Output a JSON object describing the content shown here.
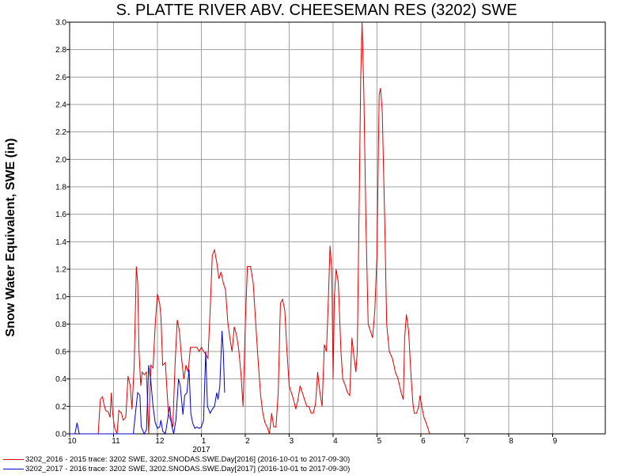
{
  "chart_data": {
    "type": "line",
    "title": "S. PLATTE RIVER ABV. CHEESEMAN RES (3202) SWE",
    "ylabel": "Snow Water Equivalent, SWE (in)",
    "xlabel": "",
    "ylim": [
      0,
      3.0
    ],
    "y_ticks": [
      "0.0",
      "0.2",
      "0.4",
      "0.6",
      "0.8",
      "1.0",
      "1.2",
      "1.4",
      "1.6",
      "1.8",
      "2.0",
      "2.2",
      "2.4",
      "2.6",
      "2.8",
      "3.0"
    ],
    "x_range_months": [
      0,
      12.2
    ],
    "x_ticks": [
      {
        "pos": 0,
        "label": "10"
      },
      {
        "pos": 1,
        "label": "11"
      },
      {
        "pos": 2,
        "label": "12"
      },
      {
        "pos": 3,
        "label": "1"
      },
      {
        "pos": 4,
        "label": "2"
      },
      {
        "pos": 5,
        "label": "3"
      },
      {
        "pos": 6,
        "label": "4"
      },
      {
        "pos": 7,
        "label": "5"
      },
      {
        "pos": 8,
        "label": "6"
      },
      {
        "pos": 9,
        "label": "7"
      },
      {
        "pos": 10,
        "label": "8"
      },
      {
        "pos": 11,
        "label": "9"
      }
    ],
    "year_label": {
      "pos": 3,
      "label": "2017"
    },
    "grid": true,
    "legend_position": "bottom-left",
    "series": [
      {
        "name": "3202_2016 - 2015 trace: 3202 SWE, 3202.SNODAS.SWE.Day[2016] (2016-10-01 to 2017-09-30)",
        "color": "#e00000",
        "points": [
          [
            0.6,
            0.0
          ],
          [
            0.65,
            0.0
          ],
          [
            0.7,
            0.25
          ],
          [
            0.75,
            0.27
          ],
          [
            0.78,
            0.22
          ],
          [
            0.82,
            0.17
          ],
          [
            0.88,
            0.16
          ],
          [
            0.92,
            0.12
          ],
          [
            0.95,
            0.3
          ],
          [
            0.98,
            0.15
          ],
          [
            1.02,
            0.05
          ],
          [
            1.08,
            0.0
          ],
          [
            1.12,
            0.17
          ],
          [
            1.18,
            0.15
          ],
          [
            1.22,
            0.1
          ],
          [
            1.28,
            0.12
          ],
          [
            1.33,
            0.42
          ],
          [
            1.38,
            0.35
          ],
          [
            1.42,
            0.18
          ],
          [
            1.47,
            0.5
          ],
          [
            1.52,
            1.22
          ],
          [
            1.55,
            1.1
          ],
          [
            1.58,
            0.6
          ],
          [
            1.62,
            0.35
          ],
          [
            1.65,
            0.45
          ],
          [
            1.7,
            0.43
          ],
          [
            1.75,
            0.45
          ],
          [
            1.8,
            0.0
          ],
          [
            1.85,
            0.5
          ],
          [
            1.9,
            0.48
          ],
          [
            1.95,
            0.8
          ],
          [
            2.0,
            1.02
          ],
          [
            2.05,
            0.95
          ],
          [
            2.08,
            0.85
          ],
          [
            2.12,
            0.5
          ],
          [
            2.18,
            0.52
          ],
          [
            2.22,
            0.3
          ],
          [
            2.25,
            0.15
          ],
          [
            2.3,
            0.1
          ],
          [
            2.35,
            0.05
          ],
          [
            2.4,
            0.5
          ],
          [
            2.45,
            0.83
          ],
          [
            2.5,
            0.75
          ],
          [
            2.55,
            0.55
          ],
          [
            2.6,
            0.4
          ],
          [
            2.65,
            0.5
          ],
          [
            2.7,
            0.45
          ],
          [
            2.75,
            0.63
          ],
          [
            2.8,
            0.63
          ],
          [
            2.9,
            0.63
          ],
          [
            2.95,
            0.6
          ],
          [
            3.0,
            0.63
          ],
          [
            3.05,
            0.6
          ],
          [
            3.1,
            0.58
          ],
          [
            3.15,
            0.55
          ],
          [
            3.2,
            0.9
          ],
          [
            3.25,
            1.3
          ],
          [
            3.3,
            1.34
          ],
          [
            3.35,
            1.25
          ],
          [
            3.4,
            1.13
          ],
          [
            3.45,
            1.18
          ],
          [
            3.5,
            1.1
          ],
          [
            3.55,
            1.05
          ],
          [
            3.6,
            0.82
          ],
          [
            3.65,
            0.7
          ],
          [
            3.7,
            0.6
          ],
          [
            3.75,
            0.78
          ],
          [
            3.8,
            0.72
          ],
          [
            3.85,
            0.62
          ],
          [
            3.9,
            0.45
          ],
          [
            3.95,
            0.2
          ],
          [
            4.0,
            0.8
          ],
          [
            4.05,
            1.22
          ],
          [
            4.12,
            1.22
          ],
          [
            4.18,
            1.1
          ],
          [
            4.25,
            0.75
          ],
          [
            4.3,
            0.5
          ],
          [
            4.35,
            0.28
          ],
          [
            4.4,
            0.15
          ],
          [
            4.45,
            0.08
          ],
          [
            4.5,
            0.05
          ],
          [
            4.55,
            0.0
          ],
          [
            4.6,
            0.15
          ],
          [
            4.65,
            0.05
          ],
          [
            4.7,
            0.05
          ],
          [
            4.75,
            0.3
          ],
          [
            4.8,
            0.95
          ],
          [
            4.85,
            0.98
          ],
          [
            4.9,
            0.9
          ],
          [
            4.95,
            0.6
          ],
          [
            5.0,
            0.35
          ],
          [
            5.05,
            0.3
          ],
          [
            5.1,
            0.25
          ],
          [
            5.15,
            0.18
          ],
          [
            5.2,
            0.25
          ],
          [
            5.25,
            0.35
          ],
          [
            5.3,
            0.3
          ],
          [
            5.35,
            0.25
          ],
          [
            5.4,
            0.2
          ],
          [
            5.45,
            0.2
          ],
          [
            5.5,
            0.15
          ],
          [
            5.55,
            0.15
          ],
          [
            5.6,
            0.22
          ],
          [
            5.65,
            0.45
          ],
          [
            5.7,
            0.3
          ],
          [
            5.75,
            0.2
          ],
          [
            5.8,
            0.65
          ],
          [
            5.85,
            0.6
          ],
          [
            5.9,
            1.05
          ],
          [
            5.93,
            1.37
          ],
          [
            5.97,
            1.2
          ],
          [
            6.0,
            0.4
          ],
          [
            6.03,
            1.0
          ],
          [
            6.07,
            1.2
          ],
          [
            6.12,
            1.1
          ],
          [
            6.18,
            0.6
          ],
          [
            6.22,
            0.4
          ],
          [
            6.28,
            0.35
          ],
          [
            6.33,
            0.3
          ],
          [
            6.38,
            0.28
          ],
          [
            6.43,
            0.7
          ],
          [
            6.48,
            0.55
          ],
          [
            6.52,
            0.45
          ],
          [
            6.55,
            0.6
          ],
          [
            6.6,
            1.8
          ],
          [
            6.63,
            2.6
          ],
          [
            6.66,
            3.0
          ],
          [
            6.7,
            2.5
          ],
          [
            6.75,
            1.5
          ],
          [
            6.8,
            0.8
          ],
          [
            6.85,
            0.75
          ],
          [
            6.9,
            0.7
          ],
          [
            6.95,
            0.9
          ],
          [
            7.0,
            1.3
          ],
          [
            7.05,
            2.47
          ],
          [
            7.08,
            2.52
          ],
          [
            7.12,
            2.35
          ],
          [
            7.18,
            1.5
          ],
          [
            7.22,
            0.8
          ],
          [
            7.28,
            0.6
          ],
          [
            7.35,
            0.55
          ],
          [
            7.42,
            0.45
          ],
          [
            7.48,
            0.4
          ],
          [
            7.55,
            0.3
          ],
          [
            7.6,
            0.25
          ],
          [
            7.63,
            0.7
          ],
          [
            7.67,
            0.87
          ],
          [
            7.72,
            0.75
          ],
          [
            7.78,
            0.4
          ],
          [
            7.82,
            0.22
          ],
          [
            7.85,
            0.15
          ],
          [
            7.9,
            0.15
          ],
          [
            7.95,
            0.2
          ],
          [
            7.98,
            0.28
          ],
          [
            8.02,
            0.2
          ],
          [
            8.07,
            0.12
          ],
          [
            8.12,
            0.08
          ],
          [
            8.17,
            0.03
          ],
          [
            8.2,
            0.0
          ]
        ]
      },
      {
        "name": "3202_2017 - 2016 trace: 3202 SWE, 3202.SNODAS.SWE.Day[2017] (2016-10-01 to 2017-09-30)",
        "color": "#0000cc",
        "points": [
          [
            0.0,
            0.0
          ],
          [
            0.12,
            0.0
          ],
          [
            0.17,
            0.08
          ],
          [
            0.22,
            0.0
          ],
          [
            0.3,
            0.0
          ],
          [
            0.5,
            0.0
          ],
          [
            0.8,
            0.0
          ],
          [
            1.2,
            0.0
          ],
          [
            1.45,
            0.0
          ],
          [
            1.5,
            0.15
          ],
          [
            1.55,
            0.3
          ],
          [
            1.6,
            0.28
          ],
          [
            1.63,
            0.05
          ],
          [
            1.7,
            0.0
          ],
          [
            1.75,
            0.03
          ],
          [
            1.8,
            0.5
          ],
          [
            1.85,
            0.38
          ],
          [
            1.9,
            0.2
          ],
          [
            1.95,
            0.08
          ],
          [
            2.0,
            0.04
          ],
          [
            2.05,
            0.05
          ],
          [
            2.08,
            0.1
          ],
          [
            2.12,
            0.02
          ],
          [
            2.18,
            0.0
          ],
          [
            2.22,
            0.08
          ],
          [
            2.28,
            0.2
          ],
          [
            2.33,
            0.05
          ],
          [
            2.37,
            0.0
          ],
          [
            2.42,
            0.1
          ],
          [
            2.48,
            0.4
          ],
          [
            2.52,
            0.35
          ],
          [
            2.58,
            0.14
          ],
          [
            2.62,
            0.28
          ],
          [
            2.67,
            0.3
          ],
          [
            2.72,
            0.47
          ],
          [
            2.76,
            0.15
          ],
          [
            2.8,
            0.08
          ],
          [
            2.85,
            0.04
          ],
          [
            2.9,
            0.05
          ],
          [
            2.95,
            0.04
          ],
          [
            3.0,
            0.05
          ],
          [
            3.05,
            0.1
          ],
          [
            3.1,
            0.6
          ],
          [
            3.14,
            0.2
          ],
          [
            3.2,
            0.15
          ],
          [
            3.25,
            0.18
          ],
          [
            3.3,
            0.2
          ],
          [
            3.35,
            0.3
          ],
          [
            3.38,
            0.25
          ],
          [
            3.42,
            0.35
          ],
          [
            3.47,
            0.75
          ],
          [
            3.5,
            0.6
          ],
          [
            3.53,
            0.3
          ]
        ]
      }
    ]
  }
}
